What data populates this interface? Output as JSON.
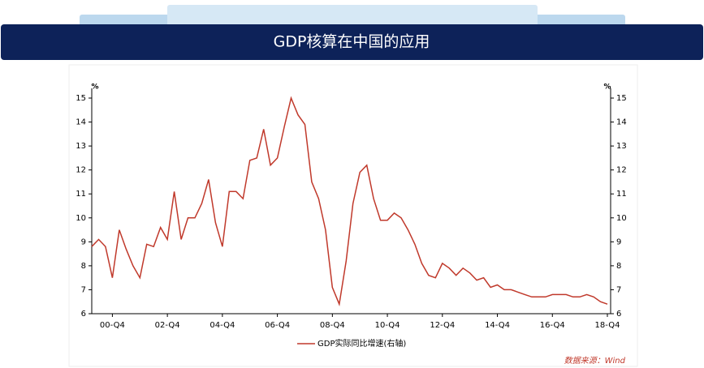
{
  "header": {
    "title": "GDP核算在中国的应用"
  },
  "chart_data": {
    "type": "line",
    "y_label": "%",
    "y2_label": "%",
    "categories": [
      null,
      null,
      null,
      "00-Q4",
      null,
      null,
      null,
      null,
      null,
      null,
      null,
      "02-Q4",
      null,
      null,
      null,
      null,
      null,
      null,
      null,
      "04-Q4",
      null,
      null,
      null,
      null,
      null,
      null,
      null,
      "06-Q4",
      null,
      null,
      null,
      null,
      null,
      null,
      null,
      "08-Q4",
      null,
      null,
      null,
      null,
      null,
      null,
      null,
      "10-Q4",
      null,
      null,
      null,
      null,
      null,
      null,
      null,
      "12-Q4",
      null,
      null,
      null,
      null,
      null,
      null,
      null,
      "14-Q4",
      null,
      null,
      null,
      null,
      null,
      null,
      null,
      "16-Q4",
      null,
      null,
      null,
      null,
      null,
      null,
      null,
      "18-Q4"
    ],
    "series": [
      {
        "name": "GDP实际同比增速(右轴)",
        "color": "#c0392b",
        "axis": "y2",
        "values": [
          8.8,
          9.1,
          8.8,
          7.5,
          9.5,
          8.7,
          8.0,
          7.5,
          8.9,
          8.8,
          9.6,
          9.1,
          11.1,
          9.1,
          10.0,
          10.0,
          10.6,
          11.6,
          9.8,
          8.8,
          11.1,
          11.1,
          10.8,
          12.4,
          12.5,
          13.7,
          12.2,
          12.5,
          13.8,
          15.0,
          14.3,
          13.9,
          11.5,
          10.8,
          9.5,
          7.1,
          6.4,
          8.2,
          10.6,
          11.9,
          12.2,
          10.8,
          9.9,
          9.9,
          10.2,
          10.0,
          9.5,
          8.9,
          8.1,
          7.6,
          7.5,
          8.1,
          7.9,
          7.6,
          7.9,
          7.7,
          7.4,
          7.5,
          7.1,
          7.2,
          7.0,
          7.0,
          6.9,
          6.8,
          6.7,
          6.7,
          6.7,
          6.8,
          6.8,
          6.8,
          6.7,
          6.7,
          6.8,
          6.7,
          6.5,
          6.4
        ]
      }
    ],
    "ylim": [
      6,
      15
    ],
    "yticks": [
      6,
      7,
      8,
      9,
      10,
      11,
      12,
      13,
      14,
      15
    ],
    "y2lim": [
      6,
      15
    ],
    "y2ticks": [
      6,
      7,
      8,
      9,
      10,
      11,
      12,
      13,
      14,
      15
    ],
    "legend": "bottom",
    "source": "数据来源：Wind"
  }
}
